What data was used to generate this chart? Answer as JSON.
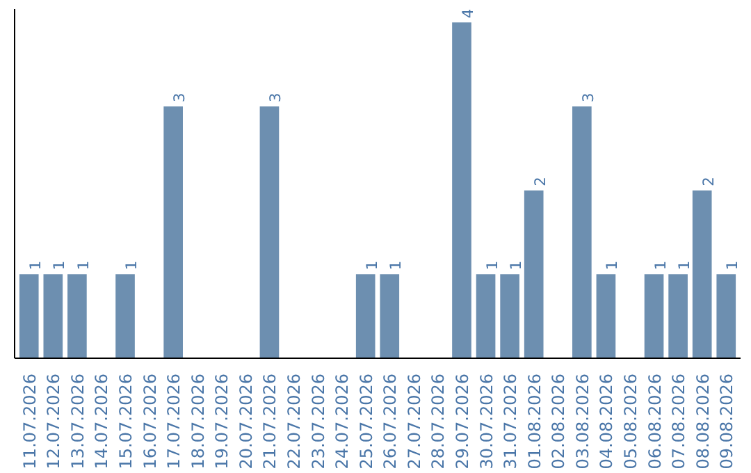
{
  "chart_data": {
    "type": "bar",
    "categories": [
      "11.07.2026",
      "12.07.2026",
      "13.07.2026",
      "14.07.2026",
      "15.07.2026",
      "16.07.2026",
      "17.07.2026",
      "18.07.2026",
      "19.07.2026",
      "20.07.2026",
      "21.07.2026",
      "22.07.2026",
      "23.07.2026",
      "24.07.2026",
      "25.07.2026",
      "26.07.2026",
      "27.07.2026",
      "28.07.2026",
      "29.07.2026",
      "30.07.2026",
      "31.07.2026",
      "01.08.2026",
      "02.08.2026",
      "03.08.2026",
      "04.08.2026",
      "05.08.2026",
      "06.08.2026",
      "07.08.2026",
      "08.08.2026",
      "09.08.2026"
    ],
    "values": [
      1,
      1,
      1,
      0,
      1,
      0,
      3,
      0,
      0,
      0,
      3,
      0,
      0,
      0,
      1,
      1,
      0,
      0,
      4,
      1,
      1,
      2,
      0,
      3,
      1,
      0,
      1,
      1,
      2,
      1
    ],
    "value_labels": [
      "1",
      "1",
      "1",
      null,
      "1",
      null,
      "3",
      null,
      null,
      null,
      "3",
      null,
      null,
      null,
      "1",
      "1",
      null,
      null,
      "4",
      "1",
      "1",
      "2",
      null,
      "3",
      "1",
      null,
      "1",
      "1",
      "2",
      "1"
    ],
    "color": "#6d8fb0",
    "grid": false,
    "tick_labels": "x"
  }
}
